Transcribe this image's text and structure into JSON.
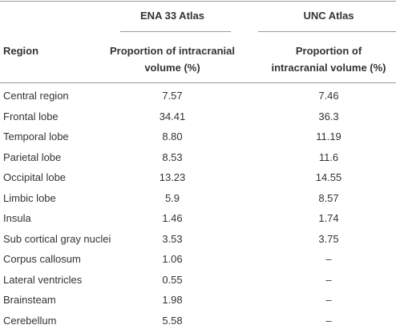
{
  "header": {
    "groups": [
      "ENA 33 Atlas",
      "UNC Atlas"
    ],
    "region": "Region",
    "columns": [
      [
        "Proportion of intracranial",
        "volume (%)"
      ],
      [
        "Proportion of",
        "intracranial volume (%)"
      ]
    ]
  },
  "table": {
    "rows": [
      [
        "Central region",
        "7.57",
        "7.46"
      ],
      [
        "Frontal lobe",
        "34.41",
        "36.3"
      ],
      [
        "Temporal lobe",
        "8.80",
        "11.19"
      ],
      [
        "Parietal lobe",
        "8.53",
        "11.6"
      ],
      [
        "Occipital lobe",
        "13.23",
        "14.55"
      ],
      [
        "Limbic lobe",
        "5.9",
        "8.57"
      ],
      [
        "Insula",
        "1.46",
        "1.74"
      ],
      [
        "Sub cortical gray nuclei",
        "3.53",
        "3.75"
      ],
      [
        "Corpus callosum",
        "1.06",
        "–"
      ],
      [
        "Lateral ventricles",
        "0.55",
        "–"
      ],
      [
        "Brainsteam",
        "1.98",
        "–"
      ],
      [
        "Cerebellum",
        "5.58",
        "–"
      ]
    ]
  }
}
